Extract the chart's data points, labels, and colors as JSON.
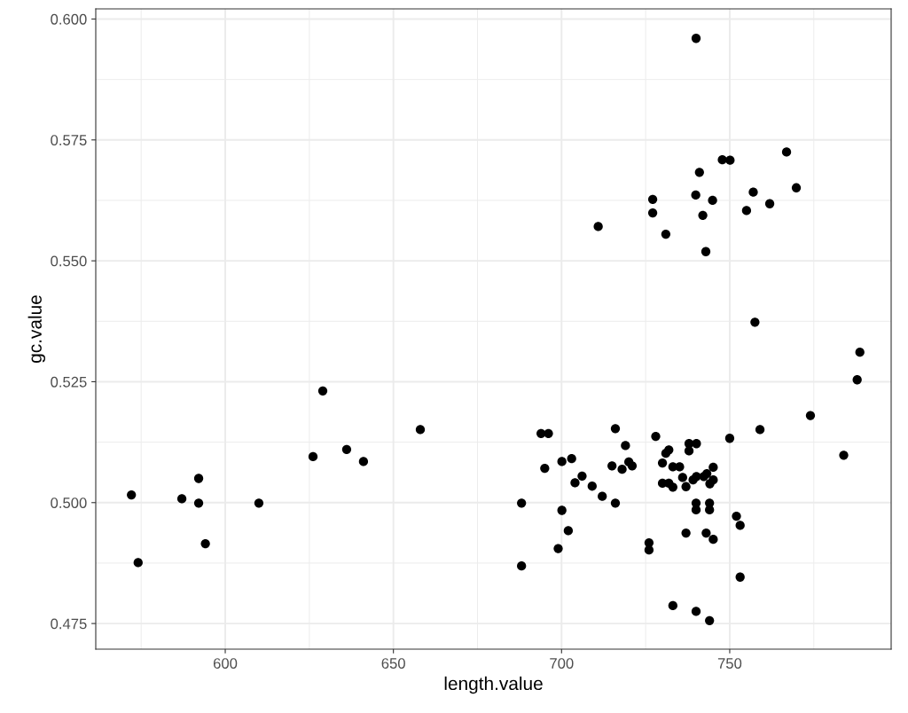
{
  "chart_data": {
    "type": "scatter",
    "xlabel": "length.value",
    "ylabel": "gc.value",
    "x": [
      572.1,
      574.1,
      587.1,
      592.1,
      592.1,
      594.1,
      610.0,
      626.1,
      629.0,
      636.1,
      641.1,
      658.0,
      688.1,
      688.1,
      693.9,
      696.1,
      695.0,
      700.1,
      703.0,
      700.1,
      706.1,
      704.0,
      709.1,
      712.1,
      702.0,
      699.0,
      716.0,
      719.0,
      715.0,
      718.0,
      720.0,
      721.0,
      716.0,
      728.0,
      726.0,
      726.0,
      731.9,
      731.0,
      737.9,
      740.1,
      737.9,
      730.0,
      733.1,
      735.1,
      745.1,
      736.0,
      739.1,
      740.1,
      742.3,
      743.2,
      745.1,
      744.1,
      730.0,
      731.9,
      733.1,
      737.0,
      740.0,
      740.0,
      744.0,
      744.0,
      737.0,
      743.0,
      745.1,
      750.0,
      759.0,
      774.0,
      783.9,
      752.0,
      753.1,
      753.1,
      733.1,
      740.0,
      744.0,
      788.7,
      787.9,
      757.5,
      710.9,
      727.1,
      727.1,
      731.0,
      741.0,
      739.9,
      744.9,
      742.0,
      742.9,
      747.8,
      750.1,
      766.9,
      769.8,
      757.0,
      755.0,
      761.9,
      740.0
    ],
    "values": [
      0.5016,
      0.4876,
      0.5008,
      0.505,
      0.4999,
      0.4915,
      0.4999,
      0.5095,
      0.5231,
      0.511,
      0.5085,
      0.5151,
      0.4999,
      0.4869,
      0.5143,
      0.5143,
      0.5071,
      0.5085,
      0.5091,
      0.4984,
      0.5055,
      0.5041,
      0.5034,
      0.5013,
      0.4942,
      0.4905,
      0.5153,
      0.5118,
      0.5076,
      0.5069,
      0.5084,
      0.5076,
      0.4999,
      0.5137,
      0.4917,
      0.4902,
      0.5109,
      0.5102,
      0.5122,
      0.5122,
      0.5107,
      0.5082,
      0.5074,
      0.5074,
      0.5073,
      0.5052,
      0.5047,
      0.5054,
      0.5054,
      0.506,
      0.5047,
      0.5039,
      0.504,
      0.504,
      0.5032,
      0.5033,
      0.4999,
      0.4985,
      0.4999,
      0.4985,
      0.4937,
      0.4937,
      0.4924,
      0.5133,
      0.5151,
      0.518,
      0.5098,
      0.4972,
      0.4953,
      0.4846,
      0.4787,
      0.4775,
      0.4756,
      0.5311,
      0.5254,
      0.5373,
      0.5571,
      0.5627,
      0.5599,
      0.5555,
      0.5683,
      0.5636,
      0.5625,
      0.5594,
      0.5519,
      0.5709,
      0.5708,
      0.5725,
      0.5651,
      0.5642,
      0.5604,
      0.5618,
      0.596
    ],
    "color": "#000000",
    "marker": "circle",
    "xlim": [
      561.5,
      798
    ],
    "xticks": [
      600,
      650,
      700,
      750
    ],
    "ylim": [
      0.4697,
      0.6021
    ],
    "yticks": [
      {
        "value": 0.475,
        "label": "0.475"
      },
      {
        "value": 0.5,
        "label": "0.500"
      },
      {
        "value": 0.525,
        "label": "0.525"
      },
      {
        "value": 0.55,
        "label": "0.550"
      },
      {
        "value": 0.575,
        "label": "0.575"
      },
      {
        "value": 0.6,
        "label": "0.600"
      }
    ],
    "grid": true,
    "legend": false
  }
}
